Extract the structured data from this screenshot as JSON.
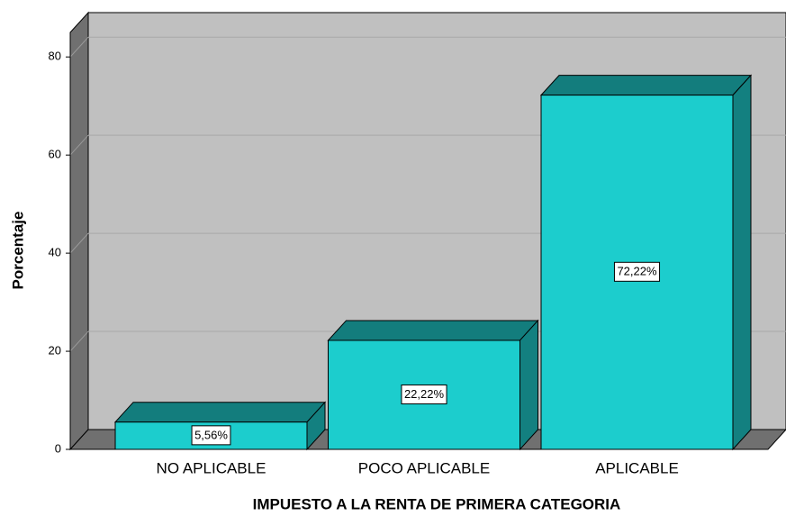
{
  "chart_data": {
    "type": "bar3d",
    "x_label": "IMPUESTO A LA RENTA DE PRIMERA CATEGORIA",
    "y_label": "Porcentaje",
    "categories": [
      "NO APLICABLE",
      "POCO APLICABLE",
      "APLICABLE"
    ],
    "values": [
      5.56,
      22.22,
      72.22
    ],
    "value_labels": [
      "5,56%",
      "22,22%",
      "72,22%"
    ],
    "color": "#1ccdcd",
    "ylim": [
      0,
      85
    ],
    "yticks": [
      0,
      20,
      40,
      60,
      80
    ],
    "grid": true
  }
}
